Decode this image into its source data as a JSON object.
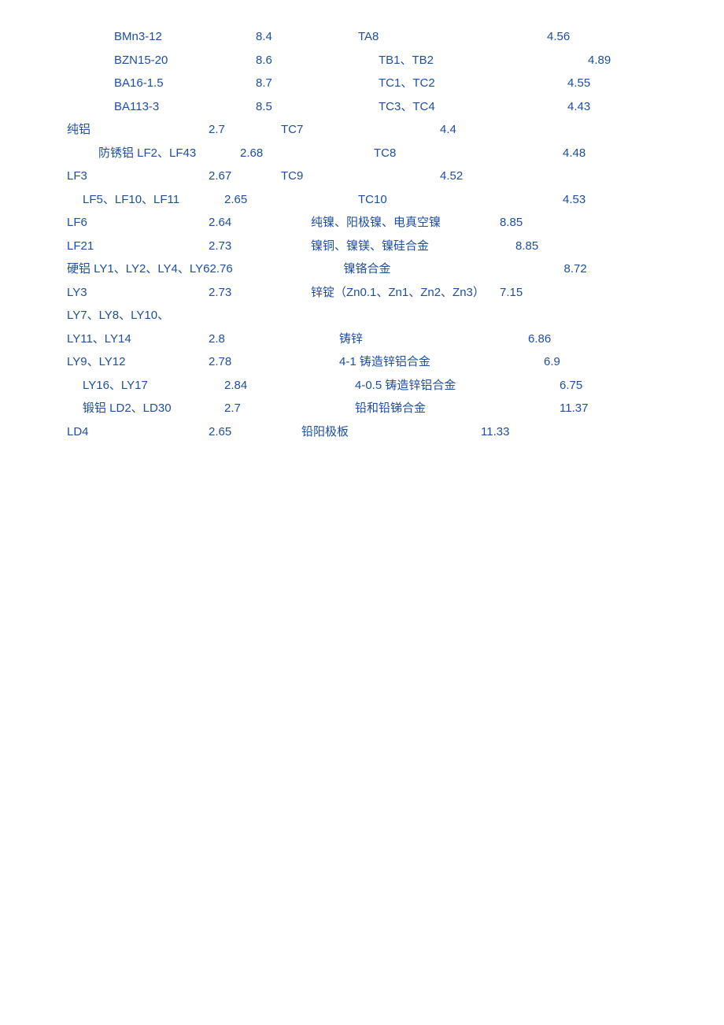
{
  "text_color": "#1d4e9f",
  "background_color": "#ffffff",
  "font_size": 15,
  "line_height": 29.5,
  "rows": [
    {
      "l": "BMn3-12",
      "lv": "8.4",
      "r": "TA8",
      "rv": "4.56",
      "lc": "c1a indent1",
      "rc": "c2a",
      "rvc": ""
    },
    {
      "l": "BZN15-20",
      "lv": "8.6",
      "r": "TB1、TB2",
      "rv": "4.89",
      "lc": "c1a indent1",
      "rc": "c2a indent2",
      "rvc": "indent2"
    },
    {
      "l": "BA16-1.5",
      "lv": "8.7",
      "r": "TC1、TC2",
      "rv": "4.55",
      "lc": "c1a indent1",
      "rc": "c2a indent2",
      "rvc": ""
    },
    {
      "l": "BA113-3",
      "lv": "8.5",
      "r": "TC3、TC4",
      "rv": "4.43",
      "lc": "c1a indent1",
      "rc": "c2a indent2",
      "rvc": ""
    },
    {
      "l": "纯铝",
      "lv": "2.7",
      "r": "TC7",
      "rv": "4.4",
      "lc": "c1a",
      "rc": "c2a pull",
      "rvc": "pull"
    },
    {
      "l": "防锈铝 LF2、LF43",
      "lv": "2.68",
      "r": "TC8",
      "rv": "4.48",
      "lc": "c1a indent3",
      "rc": "c2a indent3",
      "rvc": ""
    },
    {
      "l": "LF3",
      "lv": "2.67",
      "r": "TC9",
      "rv": "4.52",
      "lc": "c1a",
      "rc": "c2a pull",
      "rvc": "pull"
    },
    {
      "l": "LF5、LF10、LF11",
      "lv": "2.65",
      "r": "TC10",
      "rv": "4.53",
      "lc": "c1a indent5",
      "rc": "c2a indent3",
      "rvc": "indent5"
    },
    {
      "l": "LF6",
      "lv": "2.64",
      "r": "纯镍、阳极镍、电真空镍",
      "rv": "8.85",
      "lc": "c1a",
      "rc": "c2a",
      "rvc": ""
    },
    {
      "l": "LF21",
      "lv": "2.73",
      "r": "镍铜、镍镁、镍硅合金",
      "rv": "8.85",
      "lc": "c1a",
      "rc": "c2a",
      "rvc": "indent5"
    },
    {
      "l": "硬铝 LY1、LY2、LY4、LY6",
      "lv": "2.76",
      "r": "镍铬合金",
      "rv": "8.72",
      "lc": "",
      "lvc": "",
      "rc": "c2a indent3",
      "rvc": "indent3"
    },
    {
      "l": "LY3",
      "lv": "2.73",
      "r": "锌锭（Zn0.1、Zn1、Zn2、Zn3）",
      "rv": "7.15",
      "lc": "c1a",
      "rc": "c2a",
      "rvc": ""
    },
    {
      "l": "LY7、LY8、LY10、",
      "lv": "",
      "r": "",
      "rv": "",
      "lc": "c1a",
      "rc": "",
      "rvc": ""
    },
    {
      "l": "LY11、LY14",
      "lv": "2.8",
      "r": "铸锌",
      "rv": "6.86",
      "lc": "c1a",
      "rc": "c2a indent4",
      "rvc": ""
    },
    {
      "l": "LY9、LY12",
      "lv": "2.78",
      "r": "4-1 铸造锌铝合金",
      "rv": "6.9",
      "lc": "c1a",
      "rc": "c2a indent4",
      "rvc": "indent5"
    },
    {
      "l": "LY16、LY17",
      "lv": "2.84",
      "r": "4-0.5 铸造锌铝合金",
      "rv": "6.75",
      "lc": "c1a indent5",
      "rc": "c2a indent4",
      "rvc": "indent5"
    },
    {
      "l": "锻铝 LD2、LD30",
      "lv": "2.7",
      "r": "铅和铅锑合金",
      "rv": "11.37",
      "lc": "c1a indent5",
      "rc": "c2a indent4",
      "rvc": "indent5"
    },
    {
      "l": "LD4",
      "lv": "2.65",
      "r": "铅阳极板",
      "rv": "11.33",
      "lc": "c1a",
      "rc": "c2a pull2",
      "rvc": "pull2"
    }
  ]
}
